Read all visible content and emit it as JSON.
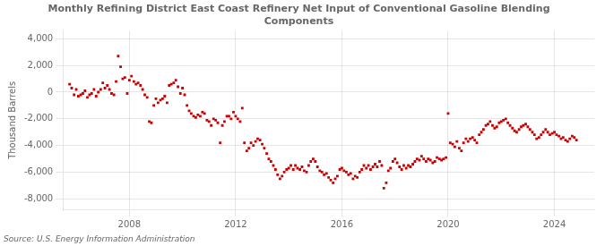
{
  "chart_data": {
    "type": "scatter",
    "title": "Monthly Refining District East Coast Refinery Net Input of Conventional Gasoline Blending\nComponents",
    "ylabel": "Thousand Barrels",
    "source": "Source: U.S. Energy Information Administration",
    "color": "#cc0000",
    "marker": "square",
    "grid": true,
    "xlim": [
      2005.5,
      2025.5
    ],
    "xticks": [
      2008,
      2012,
      2016,
      2020,
      2024
    ],
    "ylim": [
      -8800,
      4600
    ],
    "yticks": [
      {
        "value": -8000,
        "label": "-8,000"
      },
      {
        "value": -6000,
        "label": "-6,000"
      },
      {
        "value": -4000,
        "label": "-4,000"
      },
      {
        "value": -2000,
        "label": "-2,000"
      },
      0,
      {
        "value": 2000,
        "label": "2,000"
      },
      {
        "value": 4000,
        "label": "4,000"
      }
    ],
    "x": [
      2005.75,
      2005.83,
      2005.92,
      2006.0,
      2006.08,
      2006.17,
      2006.25,
      2006.33,
      2006.42,
      2006.5,
      2006.58,
      2006.67,
      2006.75,
      2006.83,
      2006.92,
      2007.0,
      2007.08,
      2007.17,
      2007.25,
      2007.33,
      2007.42,
      2007.5,
      2007.58,
      2007.67,
      2007.75,
      2007.83,
      2007.92,
      2008.0,
      2008.08,
      2008.17,
      2008.25,
      2008.33,
      2008.42,
      2008.5,
      2008.58,
      2008.67,
      2008.75,
      2008.83,
      2008.92,
      2009.0,
      2009.08,
      2009.17,
      2009.25,
      2009.33,
      2009.42,
      2009.5,
      2009.58,
      2009.67,
      2009.75,
      2009.83,
      2009.92,
      2010.0,
      2010.08,
      2010.17,
      2010.25,
      2010.33,
      2010.42,
      2010.5,
      2010.58,
      2010.67,
      2010.75,
      2010.83,
      2010.92,
      2011.0,
      2011.08,
      2011.17,
      2011.25,
      2011.33,
      2011.42,
      2011.5,
      2011.58,
      2011.67,
      2011.75,
      2011.83,
      2011.92,
      2012.0,
      2012.08,
      2012.17,
      2012.25,
      2012.33,
      2012.42,
      2012.5,
      2012.58,
      2012.67,
      2012.75,
      2012.83,
      2012.92,
      2013.0,
      2013.08,
      2013.17,
      2013.25,
      2013.33,
      2013.42,
      2013.5,
      2013.58,
      2013.67,
      2013.75,
      2013.83,
      2013.92,
      2014.0,
      2014.08,
      2014.17,
      2014.25,
      2014.33,
      2014.42,
      2014.5,
      2014.58,
      2014.67,
      2014.75,
      2014.83,
      2014.92,
      2015.0,
      2015.08,
      2015.17,
      2015.25,
      2015.33,
      2015.42,
      2015.5,
      2015.58,
      2015.67,
      2015.75,
      2015.83,
      2015.92,
      2016.0,
      2016.08,
      2016.17,
      2016.25,
      2016.33,
      2016.42,
      2016.5,
      2016.58,
      2016.67,
      2016.75,
      2016.83,
      2016.92,
      2017.0,
      2017.08,
      2017.17,
      2017.25,
      2017.33,
      2017.42,
      2017.5,
      2017.58,
      2017.67,
      2017.75,
      2017.83,
      2017.92,
      2018.0,
      2018.08,
      2018.17,
      2018.25,
      2018.33,
      2018.42,
      2018.5,
      2018.58,
      2018.67,
      2018.75,
      2018.83,
      2018.92,
      2019.0,
      2019.08,
      2019.17,
      2019.25,
      2019.33,
      2019.42,
      2019.5,
      2019.58,
      2019.67,
      2019.75,
      2019.83,
      2019.92,
      2020.0,
      2020.08,
      2020.17,
      2020.25,
      2020.33,
      2020.42,
      2020.5,
      2020.58,
      2020.67,
      2020.75,
      2020.83,
      2020.92,
      2021.0,
      2021.08,
      2021.17,
      2021.25,
      2021.33,
      2021.42,
      2021.5,
      2021.58,
      2021.67,
      2021.75,
      2021.83,
      2021.92,
      2022.0,
      2022.08,
      2022.17,
      2022.25,
      2022.33,
      2022.42,
      2022.5,
      2022.58,
      2022.67,
      2022.75,
      2022.83,
      2022.92,
      2023.0,
      2023.08,
      2023.17,
      2023.25,
      2023.33,
      2023.42,
      2023.5,
      2023.58,
      2023.67,
      2023.75,
      2023.83,
      2023.92,
      2024.0,
      2024.08,
      2024.17,
      2024.25,
      2024.33,
      2024.42,
      2024.5,
      2024.58,
      2024.67,
      2024.75,
      2024.83
    ],
    "values": [
      600,
      300,
      -200,
      200,
      -300,
      -200,
      -100,
      100,
      -400,
      -200,
      -100,
      200,
      -300,
      0,
      200,
      700,
      300,
      500,
      200,
      -100,
      -200,
      800,
      2700,
      1900,
      1000,
      1100,
      -100,
      900,
      1200,
      800,
      600,
      700,
      500,
      200,
      -200,
      -400,
      -2200,
      -2300,
      -1000,
      -500,
      -800,
      -600,
      -500,
      -300,
      -800,
      500,
      600,
      700,
      900,
      400,
      -100,
      300,
      -200,
      -1000,
      -1400,
      -1600,
      -1800,
      -1900,
      -1700,
      -1800,
      -1500,
      -1600,
      -2100,
      -2200,
      -2500,
      -2000,
      -2100,
      -2300,
      -3800,
      -2500,
      -2200,
      -1800,
      -1800,
      -2000,
      -1500,
      -1800,
      -2000,
      -2200,
      -1200,
      -3800,
      -4400,
      -4200,
      -3800,
      -4000,
      -3700,
      -3500,
      -3600,
      -3900,
      -4200,
      -4600,
      -5000,
      -5200,
      -5500,
      -5800,
      -6200,
      -6500,
      -6300,
      -6000,
      -5800,
      -5700,
      -5500,
      -5800,
      -5500,
      -5700,
      -5800,
      -5600,
      -5900,
      -6000,
      -5500,
      -5200,
      -5000,
      -5200,
      -5600,
      -5900,
      -6000,
      -6200,
      -6100,
      -6400,
      -6600,
      -6800,
      -6500,
      -6300,
      -5800,
      -5700,
      -5900,
      -6000,
      -6200,
      -6100,
      -6500,
      -6300,
      -6400,
      -6000,
      -5800,
      -5500,
      -5700,
      -5500,
      -5800,
      -5600,
      -5400,
      -5600,
      -5200,
      -5500,
      -7200,
      -6800,
      -5900,
      -5700,
      -5200,
      -5000,
      -5300,
      -5600,
      -5800,
      -5500,
      -5700,
      -5500,
      -5600,
      -5400,
      -5200,
      -5000,
      -5100,
      -4800,
      -5000,
      -5200,
      -5000,
      -5100,
      -5300,
      -5200,
      -4900,
      -5000,
      -5100,
      -5000,
      -4900,
      -1600,
      -3800,
      -3900,
      -4100,
      -3700,
      -4200,
      -4400,
      -3800,
      -3500,
      -3700,
      -3500,
      -3400,
      -3600,
      -3800,
      -3200,
      -3000,
      -2800,
      -2500,
      -2400,
      -2200,
      -2500,
      -2700,
      -2600,
      -2300,
      -2200,
      -2100,
      -2000,
      -2300,
      -2500,
      -2700,
      -2900,
      -3000,
      -2800,
      -2600,
      -2500,
      -2400,
      -2600,
      -2800,
      -3000,
      -3200,
      -3500,
      -3400,
      -3200,
      -3000,
      -2800,
      -3000,
      -3200,
      -3100,
      -3000,
      -3200,
      -3300,
      -3500,
      -3400,
      -3600,
      -3700,
      -3500,
      -3300,
      -3400,
      -3600
    ]
  }
}
